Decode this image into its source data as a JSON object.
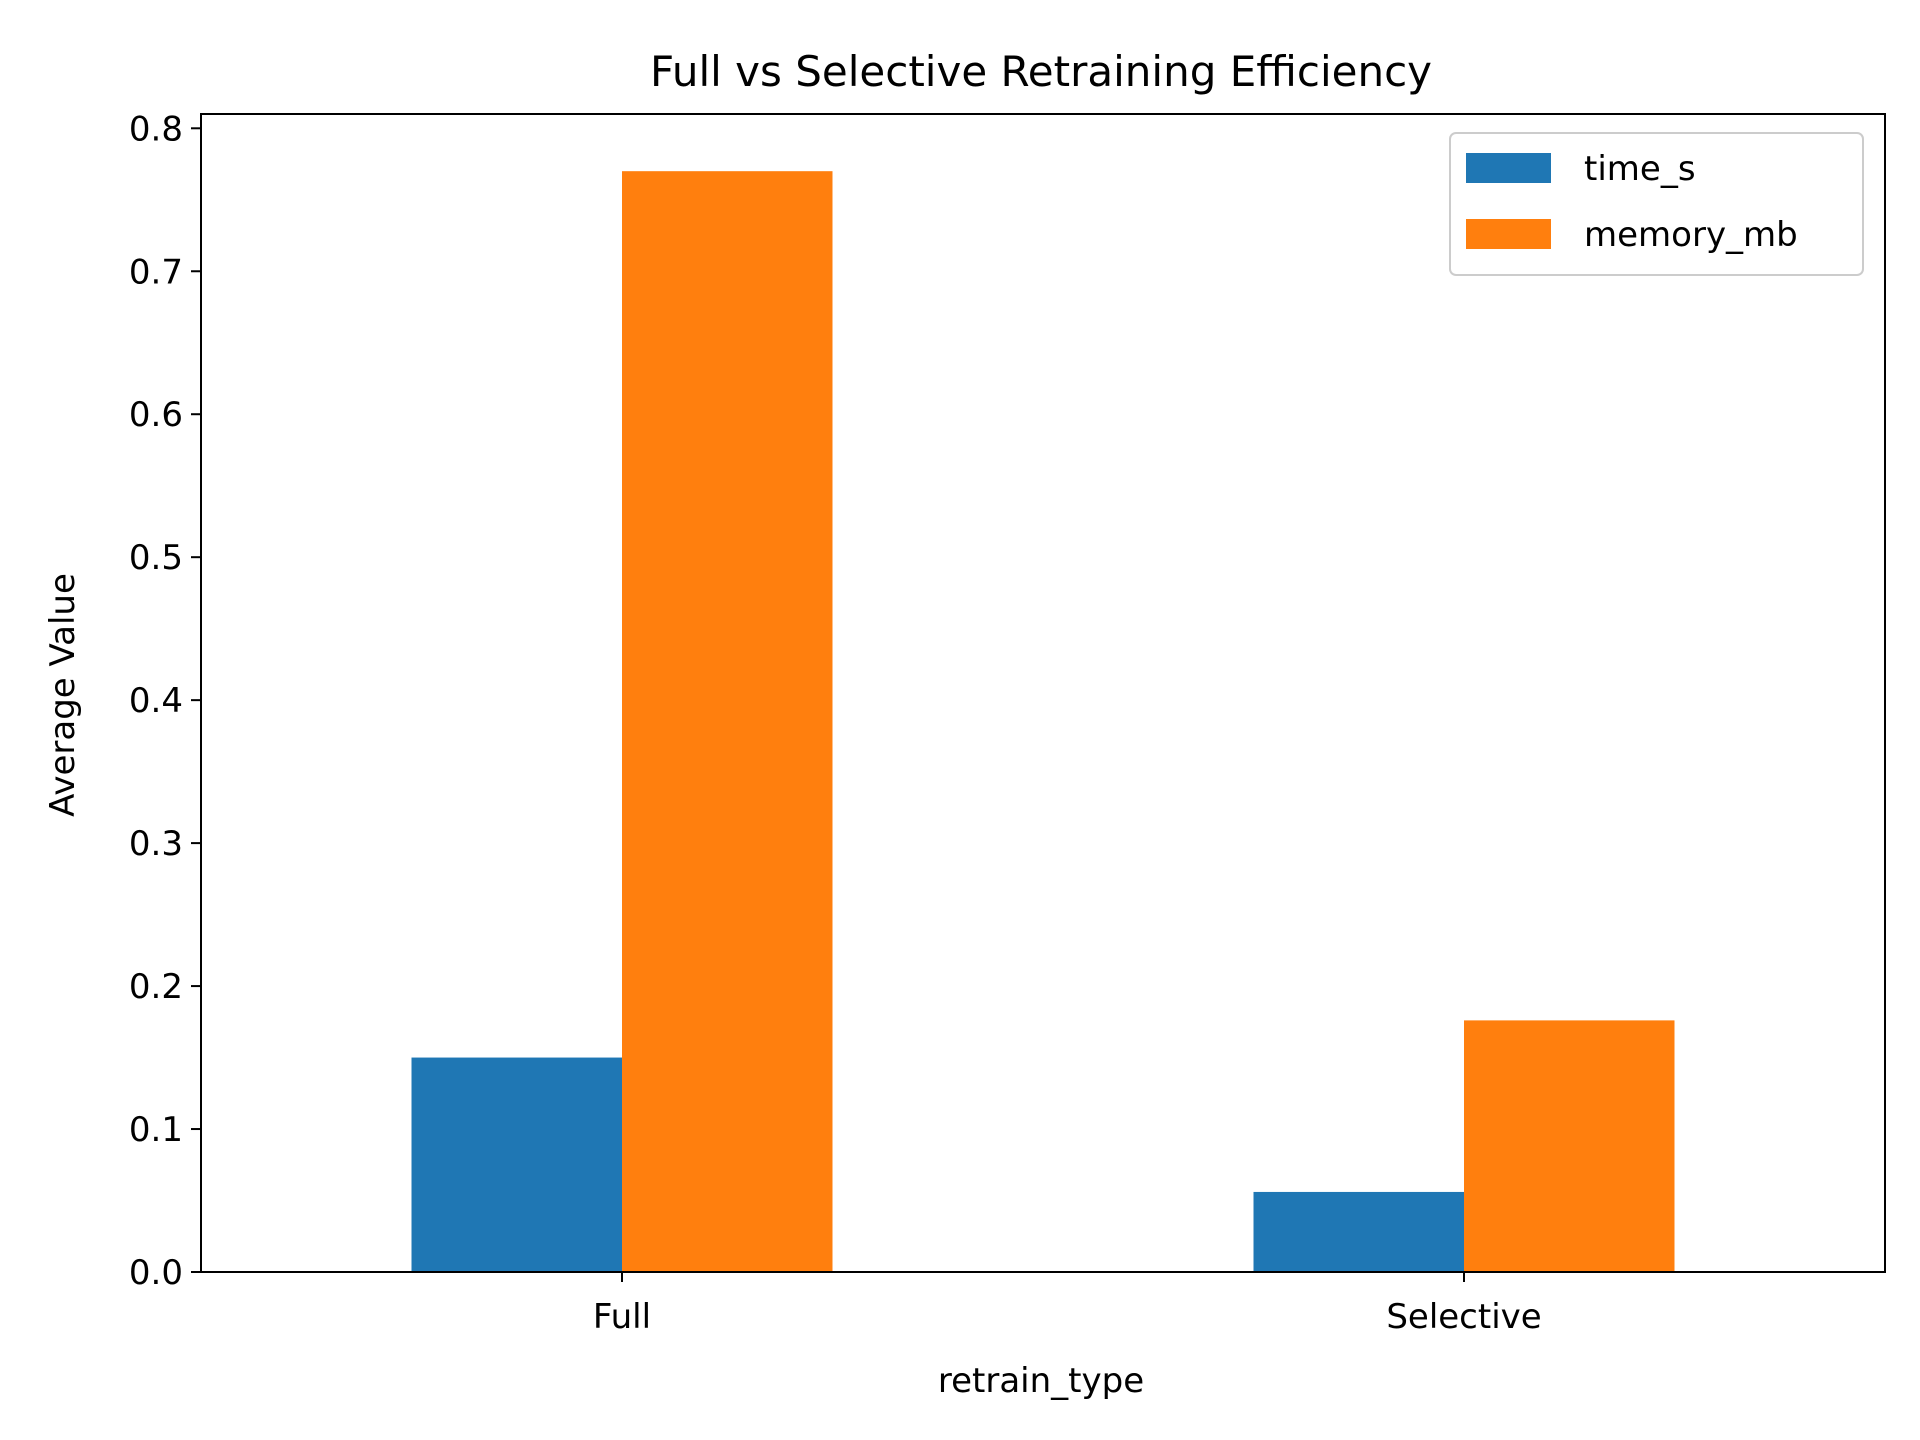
{
  "chart_data": {
    "type": "bar",
    "title": "Full vs Selective Retraining Efficiency",
    "xlabel": "retrain_type",
    "ylabel": "Average Value",
    "categories": [
      "Full",
      "Selective"
    ],
    "series": [
      {
        "name": "time_s",
        "color": "#1f77b4",
        "values": [
          0.15,
          0.056
        ]
      },
      {
        "name": "memory_mb",
        "color": "#ff7f0e",
        "values": [
          0.77,
          0.176
        ]
      }
    ],
    "ylim": [
      0,
      0.81
    ],
    "yticks": [
      "0.0",
      "0.1",
      "0.2",
      "0.3",
      "0.4",
      "0.5",
      "0.6",
      "0.7",
      "0.8"
    ],
    "legend": "top-right",
    "grid": false
  }
}
